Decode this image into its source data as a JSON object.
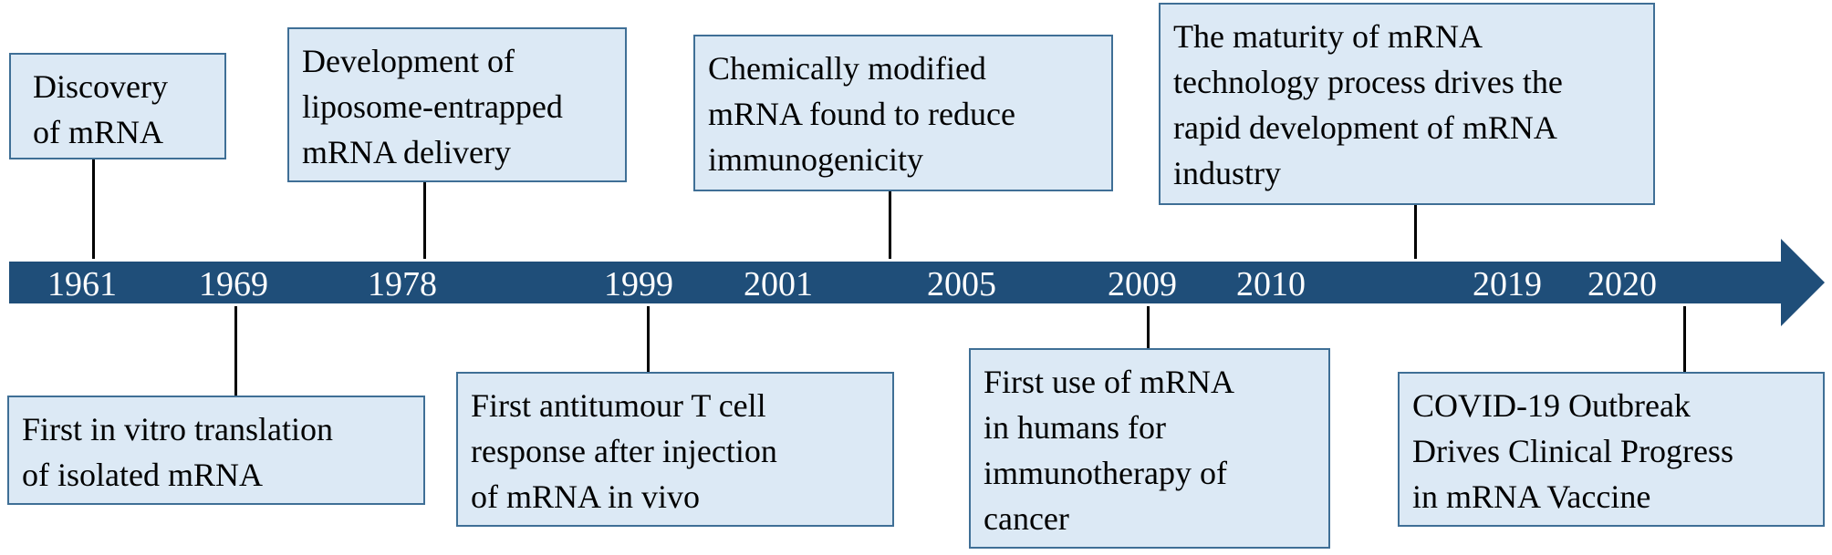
{
  "timeline": {
    "years": [
      "1961",
      "1969",
      "1978",
      "1999",
      "2001",
      "2005",
      "2009",
      "2010",
      "2019",
      "2020"
    ],
    "top_events": [
      {
        "lines": [
          "Discovery",
          "of mRNA"
        ]
      },
      {
        "lines": [
          "Development of",
          "liposome-entrapped",
          "mRNA delivery"
        ]
      },
      {
        "lines": [
          "Chemically modified",
          "mRNA found to reduce",
          "immunogenicity"
        ]
      },
      {
        "lines": [
          "The maturity of mRNA",
          "technology process drives the",
          "rapid development of mRNA",
          "industry"
        ]
      }
    ],
    "bottom_events": [
      {
        "lines": [
          "First in vitro translation",
          "of isolated mRNA"
        ]
      },
      {
        "lines": [
          "First antitumour T cell",
          "response after injection",
          "of mRNA in vivo"
        ]
      },
      {
        "lines": [
          "First use of mRNA",
          "in humans for",
          "immunotherapy of",
          "cancer"
        ]
      },
      {
        "lines": [
          "COVID-19 Outbreak",
          "Drives Clinical Progress",
          "in mRNA Vaccine"
        ]
      }
    ]
  },
  "colors": {
    "arrow": "#1f4e79",
    "box_fill": "#dce9f5",
    "box_border": "#3f6f96",
    "connector": "#000000"
  }
}
